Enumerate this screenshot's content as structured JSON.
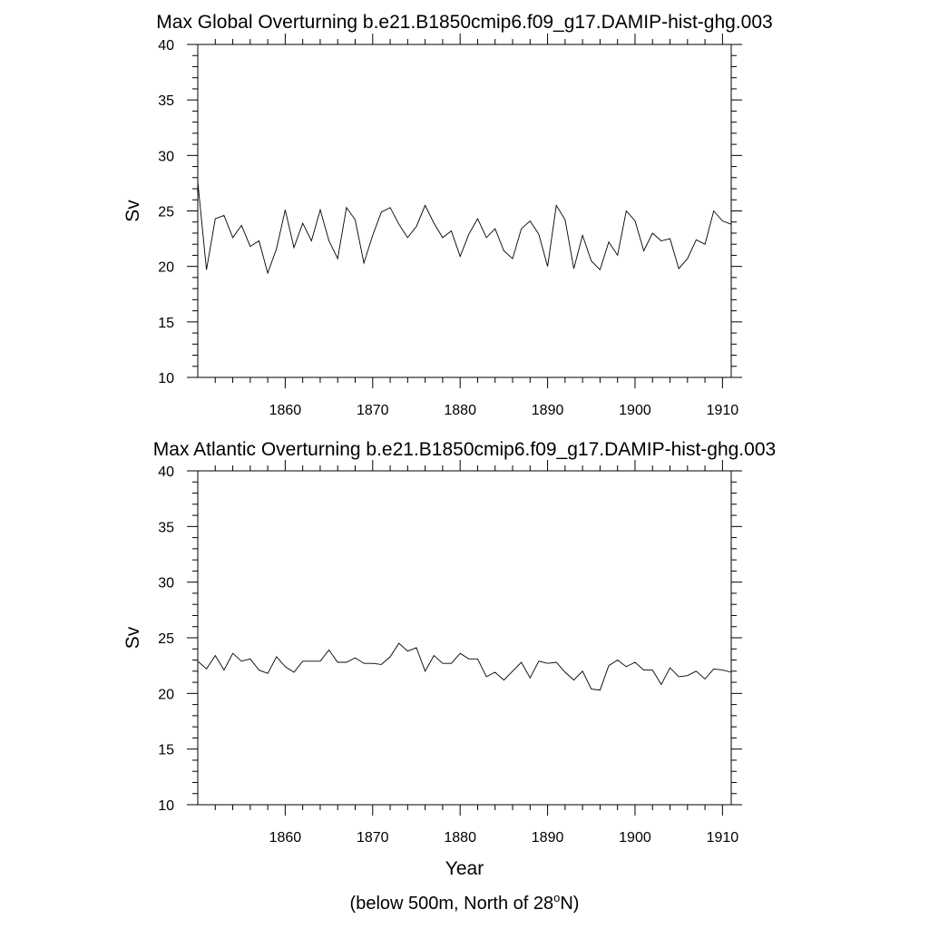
{
  "chart_data": [
    {
      "type": "line",
      "title": "Max Global Overturning b.e21.B1850cmip6.f09_g17.DAMIP-hist-ghg.003",
      "xlabel": "",
      "ylabel": "Sv",
      "xlim": [
        1850,
        1911
      ],
      "ylim": [
        10,
        40
      ],
      "xticks": [
        1860,
        1870,
        1880,
        1890,
        1900,
        1910
      ],
      "yticks": [
        10,
        15,
        20,
        25,
        30,
        35,
        40
      ],
      "grid": false,
      "x": [
        1850,
        1851,
        1852,
        1853,
        1854,
        1855,
        1856,
        1857,
        1858,
        1859,
        1860,
        1861,
        1862,
        1863,
        1864,
        1865,
        1866,
        1867,
        1868,
        1869,
        1870,
        1871,
        1872,
        1873,
        1874,
        1875,
        1876,
        1877,
        1878,
        1879,
        1880,
        1881,
        1882,
        1883,
        1884,
        1885,
        1886,
        1887,
        1888,
        1889,
        1890,
        1891,
        1892,
        1893,
        1894,
        1895,
        1896,
        1897,
        1898,
        1899,
        1900,
        1901,
        1902,
        1903,
        1904,
        1905,
        1906,
        1907,
        1908,
        1909,
        1910,
        1911
      ],
      "values": [
        27.6,
        19.7,
        24.3,
        24.6,
        22.6,
        23.7,
        21.8,
        22.3,
        19.4,
        21.6,
        25.1,
        21.7,
        23.9,
        22.3,
        25.1,
        22.3,
        20.7,
        25.3,
        24.2,
        20.3,
        22.8,
        24.9,
        25.3,
        23.8,
        22.6,
        23.6,
        25.5,
        23.9,
        22.6,
        23.2,
        20.9,
        22.9,
        24.3,
        22.6,
        23.4,
        21.4,
        20.7,
        23.4,
        24.1,
        22.9,
        20.0,
        25.5,
        24.2,
        19.8,
        22.8,
        20.5,
        19.7,
        22.2,
        21.0,
        25.0,
        24.1,
        21.4,
        23.0,
        22.3,
        22.5,
        19.8,
        20.7,
        22.4,
        22.0,
        25.0,
        24.1,
        23.8
      ]
    },
    {
      "type": "line",
      "title": "Max Atlantic Overturning b.e21.B1850cmip6.f09_g17.DAMIP-hist-ghg.003",
      "xlabel": "Year",
      "ylabel": "Sv",
      "xlim": [
        1850,
        1911
      ],
      "ylim": [
        10,
        40
      ],
      "xticks": [
        1860,
        1870,
        1880,
        1890,
        1900,
        1910
      ],
      "yticks": [
        10,
        15,
        20,
        25,
        30,
        35,
        40
      ],
      "grid": false,
      "x": [
        1850,
        1851,
        1852,
        1853,
        1854,
        1855,
        1856,
        1857,
        1858,
        1859,
        1860,
        1861,
        1862,
        1863,
        1864,
        1865,
        1866,
        1867,
        1868,
        1869,
        1870,
        1871,
        1872,
        1873,
        1874,
        1875,
        1876,
        1877,
        1878,
        1879,
        1880,
        1881,
        1882,
        1883,
        1884,
        1885,
        1886,
        1887,
        1888,
        1889,
        1890,
        1891,
        1892,
        1893,
        1894,
        1895,
        1896,
        1897,
        1898,
        1899,
        1900,
        1901,
        1902,
        1903,
        1904,
        1905,
        1906,
        1907,
        1908,
        1909,
        1910,
        1911
      ],
      "values": [
        22.9,
        22.2,
        23.4,
        22.1,
        23.6,
        22.9,
        23.1,
        22.1,
        21.8,
        23.3,
        22.4,
        21.9,
        22.9,
        22.9,
        22.9,
        23.9,
        22.8,
        22.8,
        23.2,
        22.7,
        22.7,
        22.6,
        23.3,
        24.5,
        23.8,
        24.1,
        22.0,
        23.4,
        22.7,
        22.7,
        23.6,
        23.1,
        23.1,
        21.5,
        21.9,
        21.2,
        22.0,
        22.8,
        21.4,
        22.9,
        22.7,
        22.8,
        21.9,
        21.2,
        22.0,
        20.4,
        20.3,
        22.5,
        23.0,
        22.4,
        22.8,
        22.1,
        22.1,
        20.8,
        22.3,
        21.5,
        21.6,
        22.0,
        21.3,
        22.2,
        22.1,
        21.9
      ]
    }
  ],
  "footnote": {
    "before": "(below 500m, North of 28",
    "superscript": "o",
    "after": "N)"
  },
  "style": {
    "line_color": "#000000",
    "background": "#ffffff"
  }
}
